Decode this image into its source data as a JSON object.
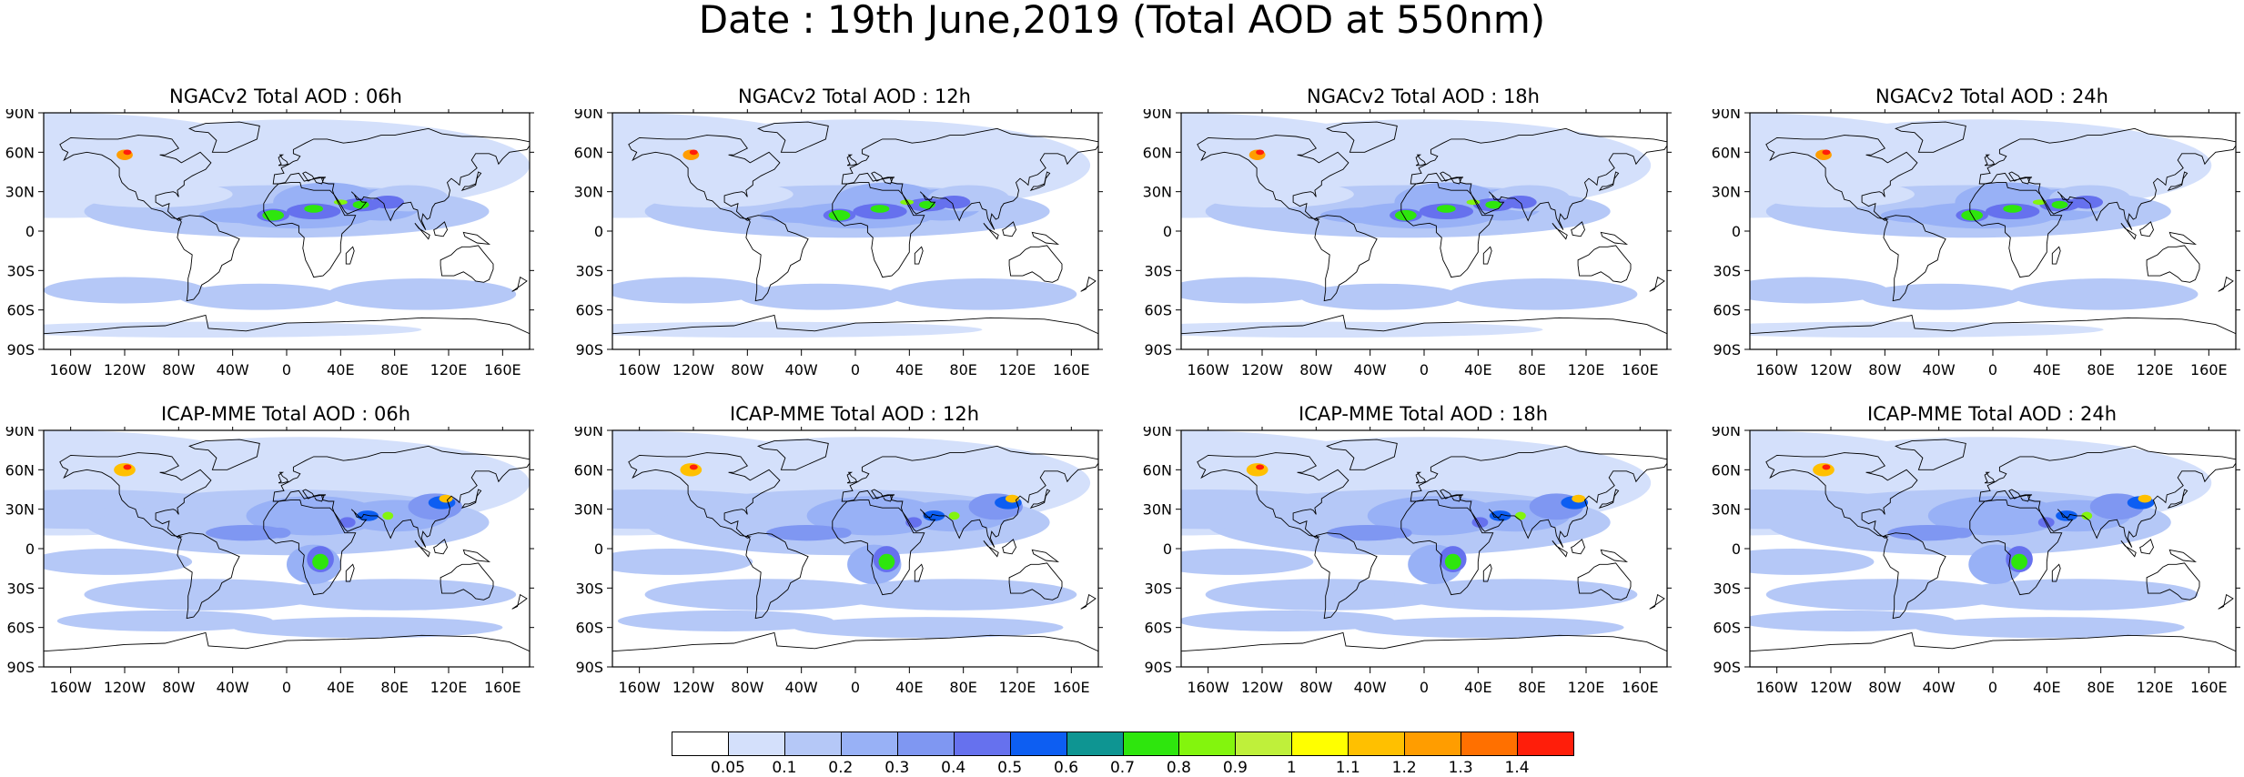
{
  "title": "Date : 19th June,2019 (Total AOD at 550nm)",
  "chart_data": {
    "type": "heatmap",
    "title": "Date : 19th June,2019 (Total AOD at 550nm)",
    "variable": "Total AOD at 550nm",
    "date": "19th June,2019",
    "x_ticks": [
      "160W",
      "120W",
      "80W",
      "40W",
      "0",
      "40E",
      "80E",
      "120E",
      "160E"
    ],
    "x_tick_values": [
      -160,
      -120,
      -80,
      -40,
      0,
      40,
      80,
      120,
      160
    ],
    "y_ticks": [
      "90N",
      "60N",
      "30N",
      "0",
      "30S",
      "60S",
      "90S"
    ],
    "y_tick_values": [
      90,
      60,
      30,
      0,
      -30,
      -60,
      -90
    ],
    "xlim": [
      -180,
      180
    ],
    "ylim": [
      -90,
      90
    ],
    "colorbar": {
      "labels": [
        "0.05",
        "0.1",
        "0.2",
        "0.3",
        "0.4",
        "0.5",
        "0.6",
        "0.7",
        "0.8",
        "0.9",
        "1",
        "1.1",
        "1.2",
        "1.3",
        "1.4"
      ],
      "colors": [
        "#ffffff",
        "#d4e0fb",
        "#b5c8f7",
        "#98b1f6",
        "#7f97f2",
        "#6671ee",
        "#0d5ef2",
        "#0e9592",
        "#2ee60d",
        "#83f50d",
        "#bff03a",
        "#ffff00",
        "#ffc000",
        "#ff9d00",
        "#ff7000",
        "#ff1e0a"
      ]
    },
    "panels": [
      {
        "title": "NGACv2 Total AOD : 06h",
        "model": "NGACv2",
        "hour": "06h"
      },
      {
        "title": "NGACv2 Total AOD : 12h",
        "model": "NGACv2",
        "hour": "12h"
      },
      {
        "title": "NGACv2 Total AOD : 18h",
        "model": "NGACv2",
        "hour": "18h"
      },
      {
        "title": "NGACv2 Total AOD : 24h",
        "model": "NGACv2",
        "hour": "24h"
      },
      {
        "title": "ICAP-MME Total AOD : 06h",
        "model": "ICAP-MME",
        "hour": "06h"
      },
      {
        "title": "ICAP-MME Total AOD : 12h",
        "model": "ICAP-MME",
        "hour": "12h"
      },
      {
        "title": "ICAP-MME Total AOD : 18h",
        "model": "ICAP-MME",
        "hour": "18h"
      },
      {
        "title": "ICAP-MME Total AOD : 24h",
        "model": "ICAP-MME",
        "hour": "24h"
      }
    ]
  }
}
